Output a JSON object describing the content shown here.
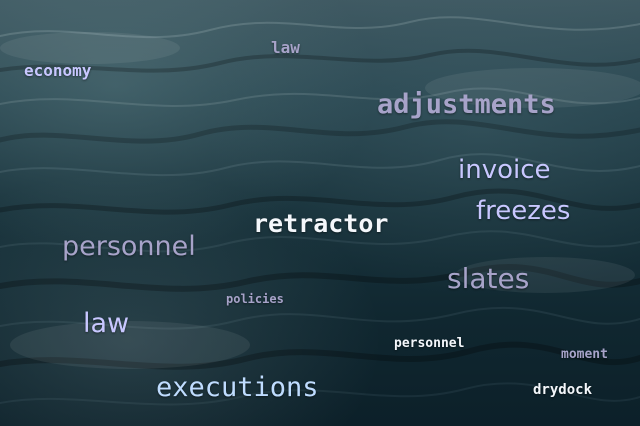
{
  "words": {
    "economy": "economy",
    "law_top": "law",
    "adjustments": "adjustments",
    "invoice": "invoice",
    "freezes": "freezes",
    "retractor": "retractor",
    "personnel_large": "personnel",
    "slates": "slates",
    "policies": "policies",
    "law_bottom": "law",
    "personnel_small": "personnel",
    "moment": "moment",
    "executions": "executions",
    "drydock": "drydock"
  },
  "colors": {
    "water_dark": "#0c2029",
    "water_mid": "#294650",
    "water_light": "#3f5962",
    "text_light": "#f4f7fb",
    "text_lavender": "#c8c7ff",
    "text_muted": "#a7a3c9",
    "text_blue": "#bfdcff"
  }
}
